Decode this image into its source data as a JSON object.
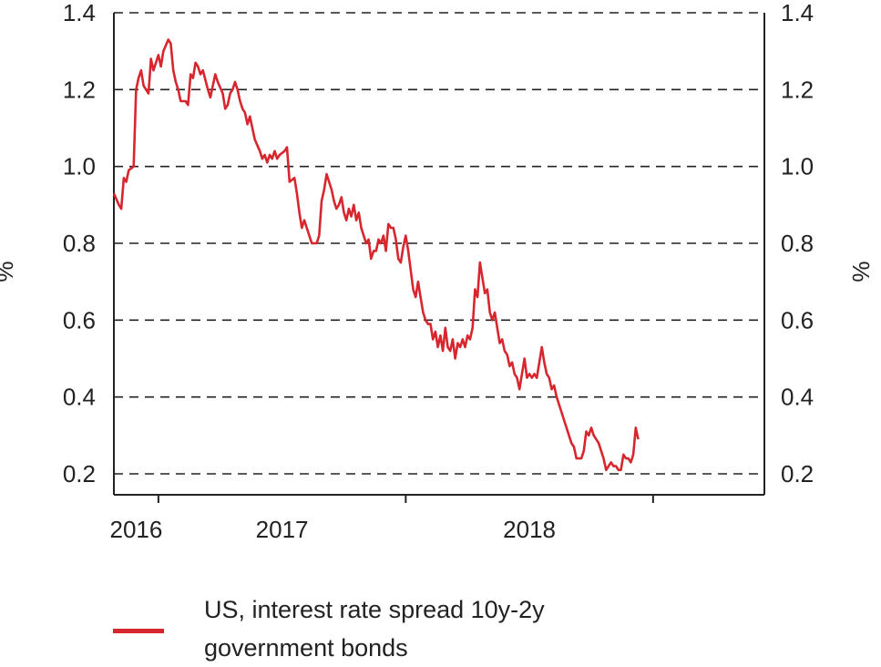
{
  "chart_data": {
    "type": "line",
    "title": "",
    "xlabel": "",
    "ylabel": "%",
    "ylabel_right": "%",
    "ylim": [
      0.2,
      1.4
    ],
    "yticks": [
      "0.2",
      "0.4",
      "0.6",
      "0.8",
      "1.0",
      "1.2",
      "1.4"
    ],
    "xlim": [
      2015.82,
      2018.45
    ],
    "xticks": [
      {
        "label": "2016",
        "x": 2016.0
      },
      {
        "label": "2017",
        "x": 2017.0
      },
      {
        "label": "2018",
        "x": 2018.0
      }
    ],
    "grid": "horizontal-dashed",
    "series": [
      {
        "name": "US, interest rate spread 10y-2y government bonds",
        "color": "#d7262e",
        "points": [
          [
            2015.82,
            0.93
          ],
          [
            2015.84,
            0.9
          ],
          [
            2015.85,
            0.89
          ],
          [
            2015.86,
            0.97
          ],
          [
            2015.87,
            0.96
          ],
          [
            2015.88,
            0.99
          ],
          [
            2015.9,
            1.0
          ],
          [
            2015.91,
            1.2
          ],
          [
            2015.92,
            1.23
          ],
          [
            2015.93,
            1.25
          ],
          [
            2015.94,
            1.21
          ],
          [
            2015.96,
            1.19
          ],
          [
            2015.97,
            1.28
          ],
          [
            2015.98,
            1.25
          ],
          [
            2016.0,
            1.29
          ],
          [
            2016.01,
            1.26
          ],
          [
            2016.02,
            1.3
          ],
          [
            2016.04,
            1.33
          ],
          [
            2016.05,
            1.32
          ],
          [
            2016.06,
            1.25
          ],
          [
            2016.07,
            1.22
          ],
          [
            2016.08,
            1.2
          ],
          [
            2016.09,
            1.17
          ],
          [
            2016.11,
            1.17
          ],
          [
            2016.12,
            1.16
          ],
          [
            2016.13,
            1.24
          ],
          [
            2016.14,
            1.23
          ],
          [
            2016.15,
            1.27
          ],
          [
            2016.16,
            1.26
          ],
          [
            2016.17,
            1.24
          ],
          [
            2016.18,
            1.25
          ],
          [
            2016.2,
            1.2
          ],
          [
            2016.21,
            1.18
          ],
          [
            2016.22,
            1.21
          ],
          [
            2016.23,
            1.24
          ],
          [
            2016.24,
            1.22
          ],
          [
            2016.26,
            1.19
          ],
          [
            2016.27,
            1.15
          ],
          [
            2016.28,
            1.16
          ],
          [
            2016.29,
            1.19
          ],
          [
            2016.3,
            1.2
          ],
          [
            2016.31,
            1.22
          ],
          [
            2016.32,
            1.2
          ],
          [
            2016.33,
            1.17
          ],
          [
            2016.34,
            1.15
          ],
          [
            2016.35,
            1.14
          ],
          [
            2016.36,
            1.11
          ],
          [
            2016.37,
            1.13
          ],
          [
            2016.38,
            1.1
          ],
          [
            2016.39,
            1.07
          ],
          [
            2016.41,
            1.04
          ],
          [
            2016.42,
            1.02
          ],
          [
            2016.43,
            1.03
          ],
          [
            2016.44,
            1.01
          ],
          [
            2016.45,
            1.03
          ],
          [
            2016.46,
            1.02
          ],
          [
            2016.47,
            1.04
          ],
          [
            2016.48,
            1.02
          ],
          [
            2016.49,
            1.03
          ],
          [
            2016.51,
            1.04
          ],
          [
            2016.52,
            1.05
          ],
          [
            2016.53,
            0.96
          ],
          [
            2016.55,
            0.97
          ],
          [
            2016.56,
            0.93
          ],
          [
            2016.57,
            0.88
          ],
          [
            2016.58,
            0.84
          ],
          [
            2016.59,
            0.86
          ],
          [
            2016.61,
            0.82
          ],
          [
            2016.62,
            0.8
          ],
          [
            2016.63,
            0.8
          ],
          [
            2016.64,
            0.8
          ],
          [
            2016.65,
            0.82
          ],
          [
            2016.66,
            0.91
          ],
          [
            2016.67,
            0.94
          ],
          [
            2016.68,
            0.98
          ],
          [
            2016.69,
            0.96
          ],
          [
            2016.7,
            0.94
          ],
          [
            2016.71,
            0.91
          ],
          [
            2016.72,
            0.89
          ],
          [
            2016.73,
            0.9
          ],
          [
            2016.74,
            0.92
          ],
          [
            2016.75,
            0.88
          ],
          [
            2016.76,
            0.86
          ],
          [
            2016.77,
            0.89
          ],
          [
            2016.78,
            0.87
          ],
          [
            2016.79,
            0.9
          ],
          [
            2016.8,
            0.86
          ],
          [
            2016.81,
            0.88
          ],
          [
            2016.82,
            0.84
          ],
          [
            2016.83,
            0.82
          ],
          [
            2016.84,
            0.8
          ],
          [
            2016.85,
            0.81
          ],
          [
            2016.86,
            0.76
          ],
          [
            2016.87,
            0.78
          ],
          [
            2016.88,
            0.78
          ],
          [
            2016.89,
            0.81
          ],
          [
            2016.9,
            0.8
          ],
          [
            2016.91,
            0.82
          ],
          [
            2016.92,
            0.78
          ],
          [
            2016.93,
            0.85
          ],
          [
            2016.94,
            0.84
          ],
          [
            2016.95,
            0.84
          ],
          [
            2016.96,
            0.81
          ],
          [
            2016.97,
            0.76
          ],
          [
            2016.98,
            0.75
          ],
          [
            2016.99,
            0.79
          ],
          [
            2017.0,
            0.82
          ],
          [
            2017.01,
            0.78
          ],
          [
            2017.02,
            0.73
          ],
          [
            2017.03,
            0.68
          ],
          [
            2017.04,
            0.66
          ],
          [
            2017.05,
            0.7
          ],
          [
            2017.06,
            0.66
          ],
          [
            2017.07,
            0.62
          ],
          [
            2017.08,
            0.6
          ],
          [
            2017.09,
            0.59
          ],
          [
            2017.1,
            0.59
          ],
          [
            2017.11,
            0.55
          ],
          [
            2017.12,
            0.57
          ],
          [
            2017.13,
            0.53
          ],
          [
            2017.14,
            0.56
          ],
          [
            2017.15,
            0.52
          ],
          [
            2017.16,
            0.58
          ],
          [
            2017.17,
            0.53
          ],
          [
            2017.18,
            0.52
          ],
          [
            2017.19,
            0.55
          ],
          [
            2017.2,
            0.5
          ],
          [
            2017.21,
            0.54
          ],
          [
            2017.22,
            0.53
          ],
          [
            2017.23,
            0.55
          ],
          [
            2017.24,
            0.53
          ],
          [
            2017.25,
            0.56
          ],
          [
            2017.26,
            0.55
          ],
          [
            2017.27,
            0.58
          ],
          [
            2017.28,
            0.68
          ],
          [
            2017.29,
            0.66
          ],
          [
            2017.3,
            0.75
          ],
          [
            2017.31,
            0.71
          ],
          [
            2017.32,
            0.67
          ],
          [
            2017.33,
            0.68
          ],
          [
            2017.34,
            0.62
          ],
          [
            2017.35,
            0.6
          ],
          [
            2017.36,
            0.62
          ],
          [
            2017.37,
            0.58
          ],
          [
            2017.38,
            0.54
          ],
          [
            2017.39,
            0.55
          ],
          [
            2017.4,
            0.52
          ],
          [
            2017.41,
            0.51
          ],
          [
            2017.42,
            0.48
          ],
          [
            2017.43,
            0.49
          ],
          [
            2017.44,
            0.46
          ],
          [
            2017.45,
            0.45
          ],
          [
            2017.46,
            0.42
          ],
          [
            2017.47,
            0.46
          ],
          [
            2017.48,
            0.5
          ],
          [
            2017.49,
            0.45
          ],
          [
            2017.5,
            0.46
          ],
          [
            2017.51,
            0.45
          ],
          [
            2017.52,
            0.46
          ],
          [
            2017.53,
            0.45
          ],
          [
            2017.54,
            0.49
          ],
          [
            2017.55,
            0.53
          ],
          [
            2017.56,
            0.49
          ],
          [
            2017.57,
            0.46
          ],
          [
            2017.58,
            0.45
          ],
          [
            2017.59,
            0.42
          ],
          [
            2017.6,
            0.43
          ],
          [
            2017.61,
            0.4
          ],
          [
            2017.62,
            0.38
          ],
          [
            2017.63,
            0.36
          ],
          [
            2017.64,
            0.34
          ],
          [
            2017.65,
            0.32
          ],
          [
            2017.66,
            0.3
          ],
          [
            2017.67,
            0.28
          ],
          [
            2017.68,
            0.27
          ],
          [
            2017.69,
            0.24
          ],
          [
            2017.71,
            0.24
          ],
          [
            2017.72,
            0.26
          ],
          [
            2017.73,
            0.31
          ],
          [
            2017.74,
            0.3
          ],
          [
            2017.75,
            0.32
          ],
          [
            2017.76,
            0.3
          ],
          [
            2017.77,
            0.29
          ],
          [
            2017.78,
            0.28
          ],
          [
            2017.79,
            0.26
          ],
          [
            2017.8,
            0.24
          ],
          [
            2017.81,
            0.21
          ],
          [
            2017.82,
            0.22
          ],
          [
            2017.83,
            0.23
          ],
          [
            2017.84,
            0.22
          ],
          [
            2017.85,
            0.22
          ],
          [
            2017.86,
            0.21
          ],
          [
            2017.87,
            0.21
          ],
          [
            2017.88,
            0.25
          ],
          [
            2017.89,
            0.24
          ],
          [
            2017.9,
            0.24
          ],
          [
            2017.91,
            0.23
          ],
          [
            2017.92,
            0.25
          ],
          [
            2017.93,
            0.32
          ],
          [
            2017.94,
            0.29
          ]
        ]
      }
    ],
    "legend": {
      "position": "bottom",
      "line1": "US, interest rate spread 10y-2y",
      "line2": "government bonds"
    }
  }
}
